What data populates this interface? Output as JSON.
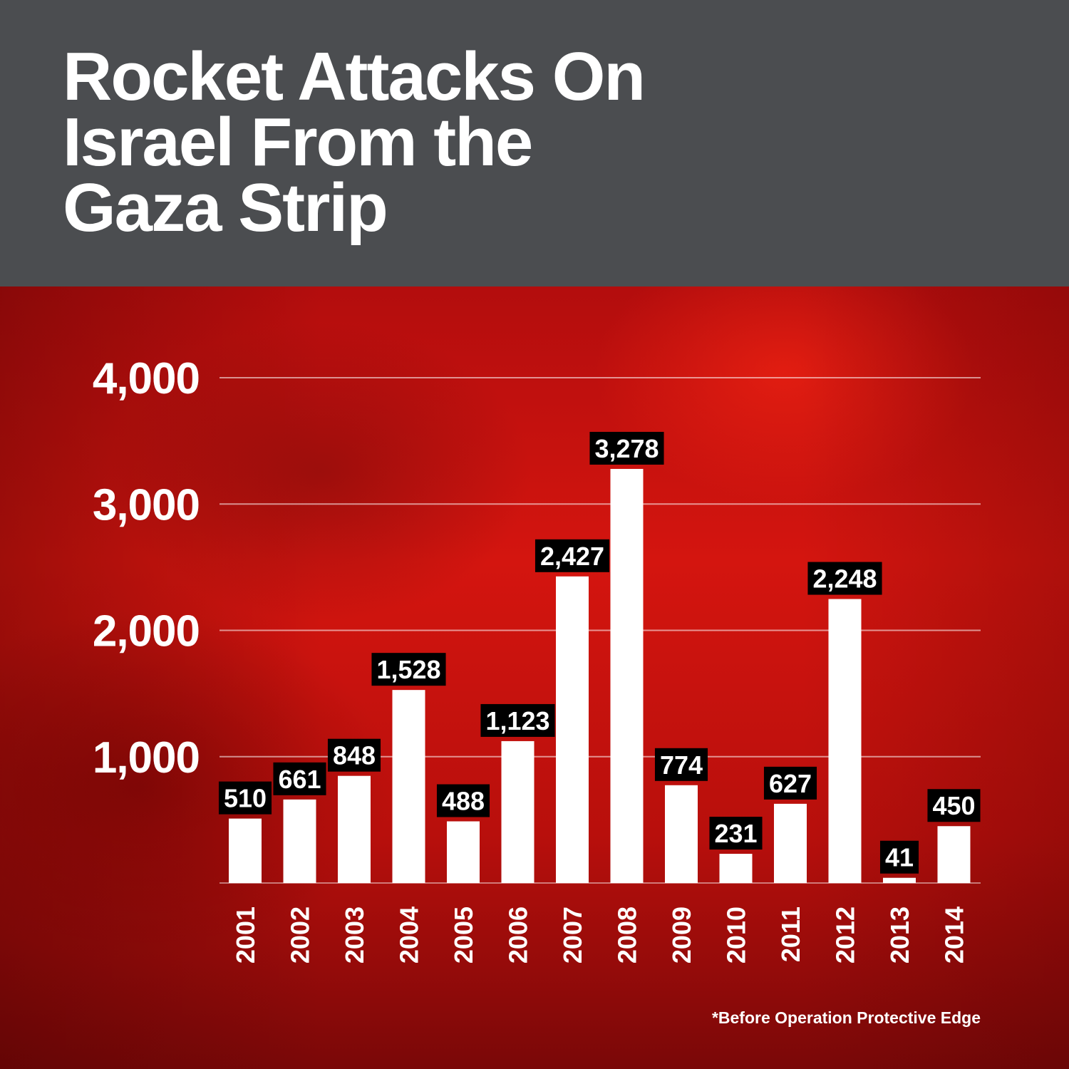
{
  "header": {
    "title": "Rocket Attacks On\nIsrael From the\nGaza Strip"
  },
  "footnote": "*Before Operation Protective Edge",
  "colors": {
    "header_bg": "#4b4d50",
    "panel_red": "#d4150f",
    "bar": "#ffffff",
    "label_bg": "#000000",
    "text": "#ffffff"
  },
  "chart_data": {
    "type": "bar",
    "title": "Rocket Attacks On Israel From the Gaza Strip",
    "categories": [
      "2001",
      "2002",
      "2003",
      "2004",
      "2005",
      "2006",
      "2007",
      "2008",
      "2009",
      "2010",
      "2011",
      "2012",
      "2013",
      "2014"
    ],
    "values": [
      510,
      661,
      848,
      1528,
      488,
      1123,
      2427,
      3278,
      774,
      231,
      627,
      2248,
      41,
      450
    ],
    "value_labels": [
      "510",
      "661",
      "848",
      "1,528",
      "488",
      "1,123",
      "2,427",
      "3,278",
      "774",
      "231",
      "627",
      "2,248",
      "41",
      "450"
    ],
    "ylim": [
      0,
      4000
    ],
    "yticks": [
      1000,
      2000,
      3000,
      4000
    ],
    "ytick_labels": [
      "1,000",
      "2,000",
      "3,000",
      "4,000"
    ],
    "xlabel": "",
    "ylabel": "",
    "grid": true,
    "x_tick_rotation": "vertical",
    "note": "*Before Operation Protective Edge"
  }
}
